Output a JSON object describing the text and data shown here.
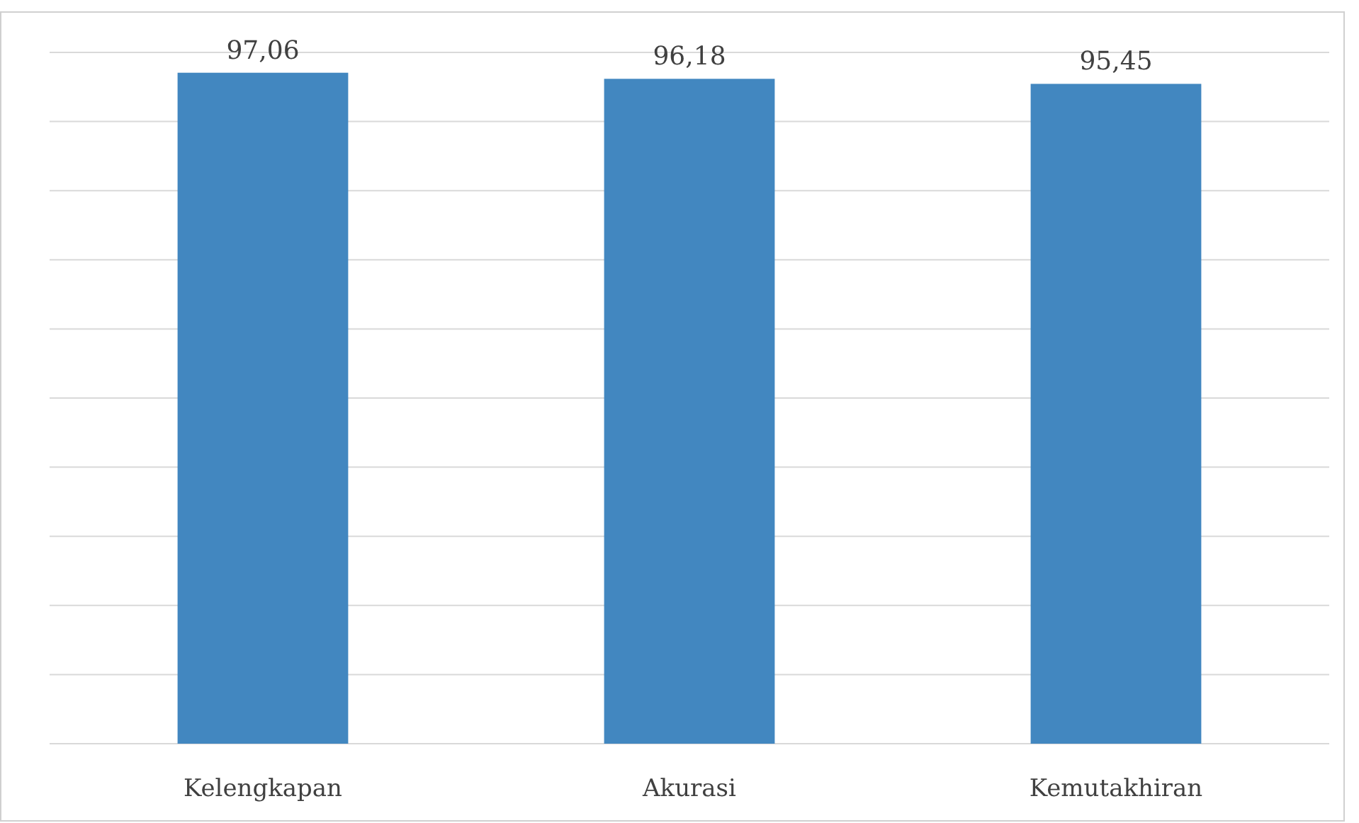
{
  "chart_data": {
    "type": "bar",
    "categories": [
      "Kelengkapan",
      "Akurasi",
      "Kemutakhiran"
    ],
    "values": [
      97.06,
      96.18,
      95.45
    ],
    "value_labels": [
      "97,06",
      "96,18",
      "95,45"
    ],
    "color": "#4287c0",
    "ylim": [
      0,
      100
    ],
    "yticks": [
      0,
      10,
      20,
      30,
      40,
      50,
      60,
      70,
      80,
      90,
      100
    ],
    "grid": "y",
    "tick_labels": "x"
  }
}
